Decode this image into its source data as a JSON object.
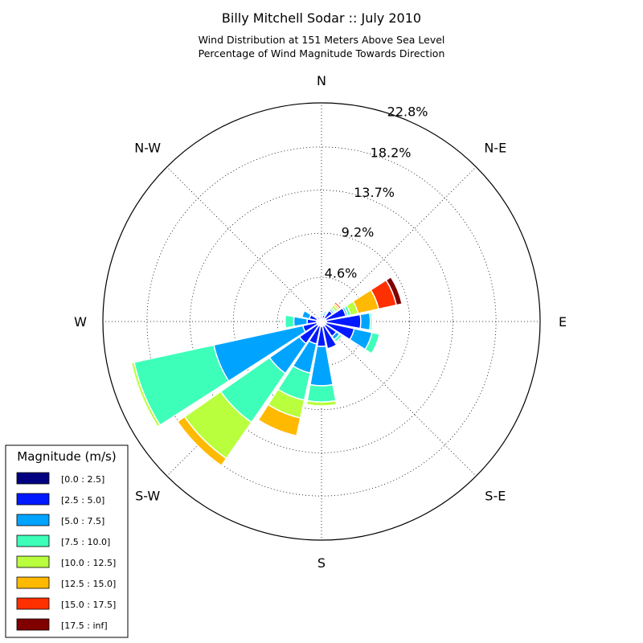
{
  "chart_data": {
    "type": "windrose",
    "title": "Billy Mitchell Sodar :: July 2010",
    "subtitle_line1": "Wind Distribution at 151 Meters Above Sea Level",
    "subtitle_line2": "Percentage of Wind Magnitude Towards Direction",
    "direction_labels": [
      "N",
      "N-E",
      "E",
      "S-E",
      "S",
      "S-W",
      "W",
      "N-W"
    ],
    "radial_ticks": [
      4.6,
      9.2,
      13.7,
      18.2,
      22.8
    ],
    "radial_tick_labels": [
      "4.6%",
      "9.2%",
      "13.7%",
      "18.2%",
      "22.8%"
    ],
    "r_max": 22.8,
    "legend_title": "Magnitude (m/s)",
    "bins": [
      {
        "label": "[0.0 : 2.5]",
        "color": "#000080"
      },
      {
        "label": "[2.5 : 5.0]",
        "color": "#0019ff"
      },
      {
        "label": "[5.0 : 7.5]",
        "color": "#00a4ff"
      },
      {
        "label": "[7.5 : 10.0]",
        "color": "#3dffb9"
      },
      {
        "label": "[10.0 : 12.5]",
        "color": "#b9ff3d"
      },
      {
        "label": "[12.5 : 15.0]",
        "color": "#ffb900"
      },
      {
        "label": "[15.0 : 17.5]",
        "color": "#ff3000"
      },
      {
        "label": "[17.5 : inf]",
        "color": "#800000"
      }
    ],
    "sectors": [
      {
        "direction_deg": 0,
        "cumulative": [
          0.3,
          0.6,
          0.8,
          0.9,
          0.9,
          0.9,
          0.9,
          0.9
        ]
      },
      {
        "direction_deg": 22.5,
        "cumulative": [
          0.3,
          0.7,
          0.9,
          1.1,
          1.2,
          1.3,
          1.4,
          1.5
        ]
      },
      {
        "direction_deg": 45,
        "cumulative": [
          0.4,
          1.4,
          1.6,
          1.8,
          2.1,
          2.3,
          2.5,
          2.6
        ]
      },
      {
        "direction_deg": 67.5,
        "cumulative": [
          0.5,
          2.6,
          2.8,
          3.1,
          3.9,
          6.1,
          8.0,
          8.6
        ]
      },
      {
        "direction_deg": 90,
        "cumulative": [
          0.5,
          4.1,
          5.1,
          5.3,
          5.4,
          5.4,
          5.4,
          5.4
        ]
      },
      {
        "direction_deg": 112.5,
        "cumulative": [
          0.5,
          3.5,
          5.4,
          6.2,
          6.3,
          6.3,
          6.3,
          6.3
        ]
      },
      {
        "direction_deg": 135,
        "cumulative": [
          0.5,
          1.9,
          2.3,
          2.6,
          2.6,
          2.6,
          2.6,
          2.6
        ]
      },
      {
        "direction_deg": 157.5,
        "cumulative": [
          0.5,
          2.9,
          3.0,
          3.1,
          3.1,
          3.1,
          3.1,
          3.1
        ]
      },
      {
        "direction_deg": 180,
        "cumulative": [
          0.5,
          2.6,
          6.7,
          8.4,
          8.8,
          8.8,
          8.8,
          8.8
        ]
      },
      {
        "direction_deg": 202.5,
        "cumulative": [
          0.5,
          2.4,
          5.5,
          8.4,
          10.3,
          12.2,
          12.2,
          12.2
        ]
      },
      {
        "direction_deg": 225,
        "cumulative": [
          0.5,
          2.8,
          6.6,
          12.8,
          17.4,
          18.3,
          18.3,
          18.3
        ]
      },
      {
        "direction_deg": 247.5,
        "cumulative": [
          0.5,
          2.0,
          11.5,
          20.0,
          20.3,
          20.3,
          20.3,
          20.3
        ]
      },
      {
        "direction_deg": 270,
        "cumulative": [
          0.5,
          1.5,
          2.9,
          3.8,
          3.8,
          3.8,
          3.8,
          3.8
        ]
      },
      {
        "direction_deg": 292.5,
        "cumulative": [
          0.5,
          1.3,
          2.1,
          2.2,
          2.2,
          2.2,
          2.2,
          2.2
        ]
      },
      {
        "direction_deg": 315,
        "cumulative": [
          0.3,
          0.6,
          0.7,
          0.7,
          0.7,
          0.7,
          0.7,
          0.7
        ]
      },
      {
        "direction_deg": 337.5,
        "cumulative": [
          0.3,
          0.5,
          0.6,
          0.6,
          0.6,
          0.6,
          0.6,
          0.6
        ]
      }
    ],
    "grid": true,
    "legend_position": "bottom-left"
  }
}
